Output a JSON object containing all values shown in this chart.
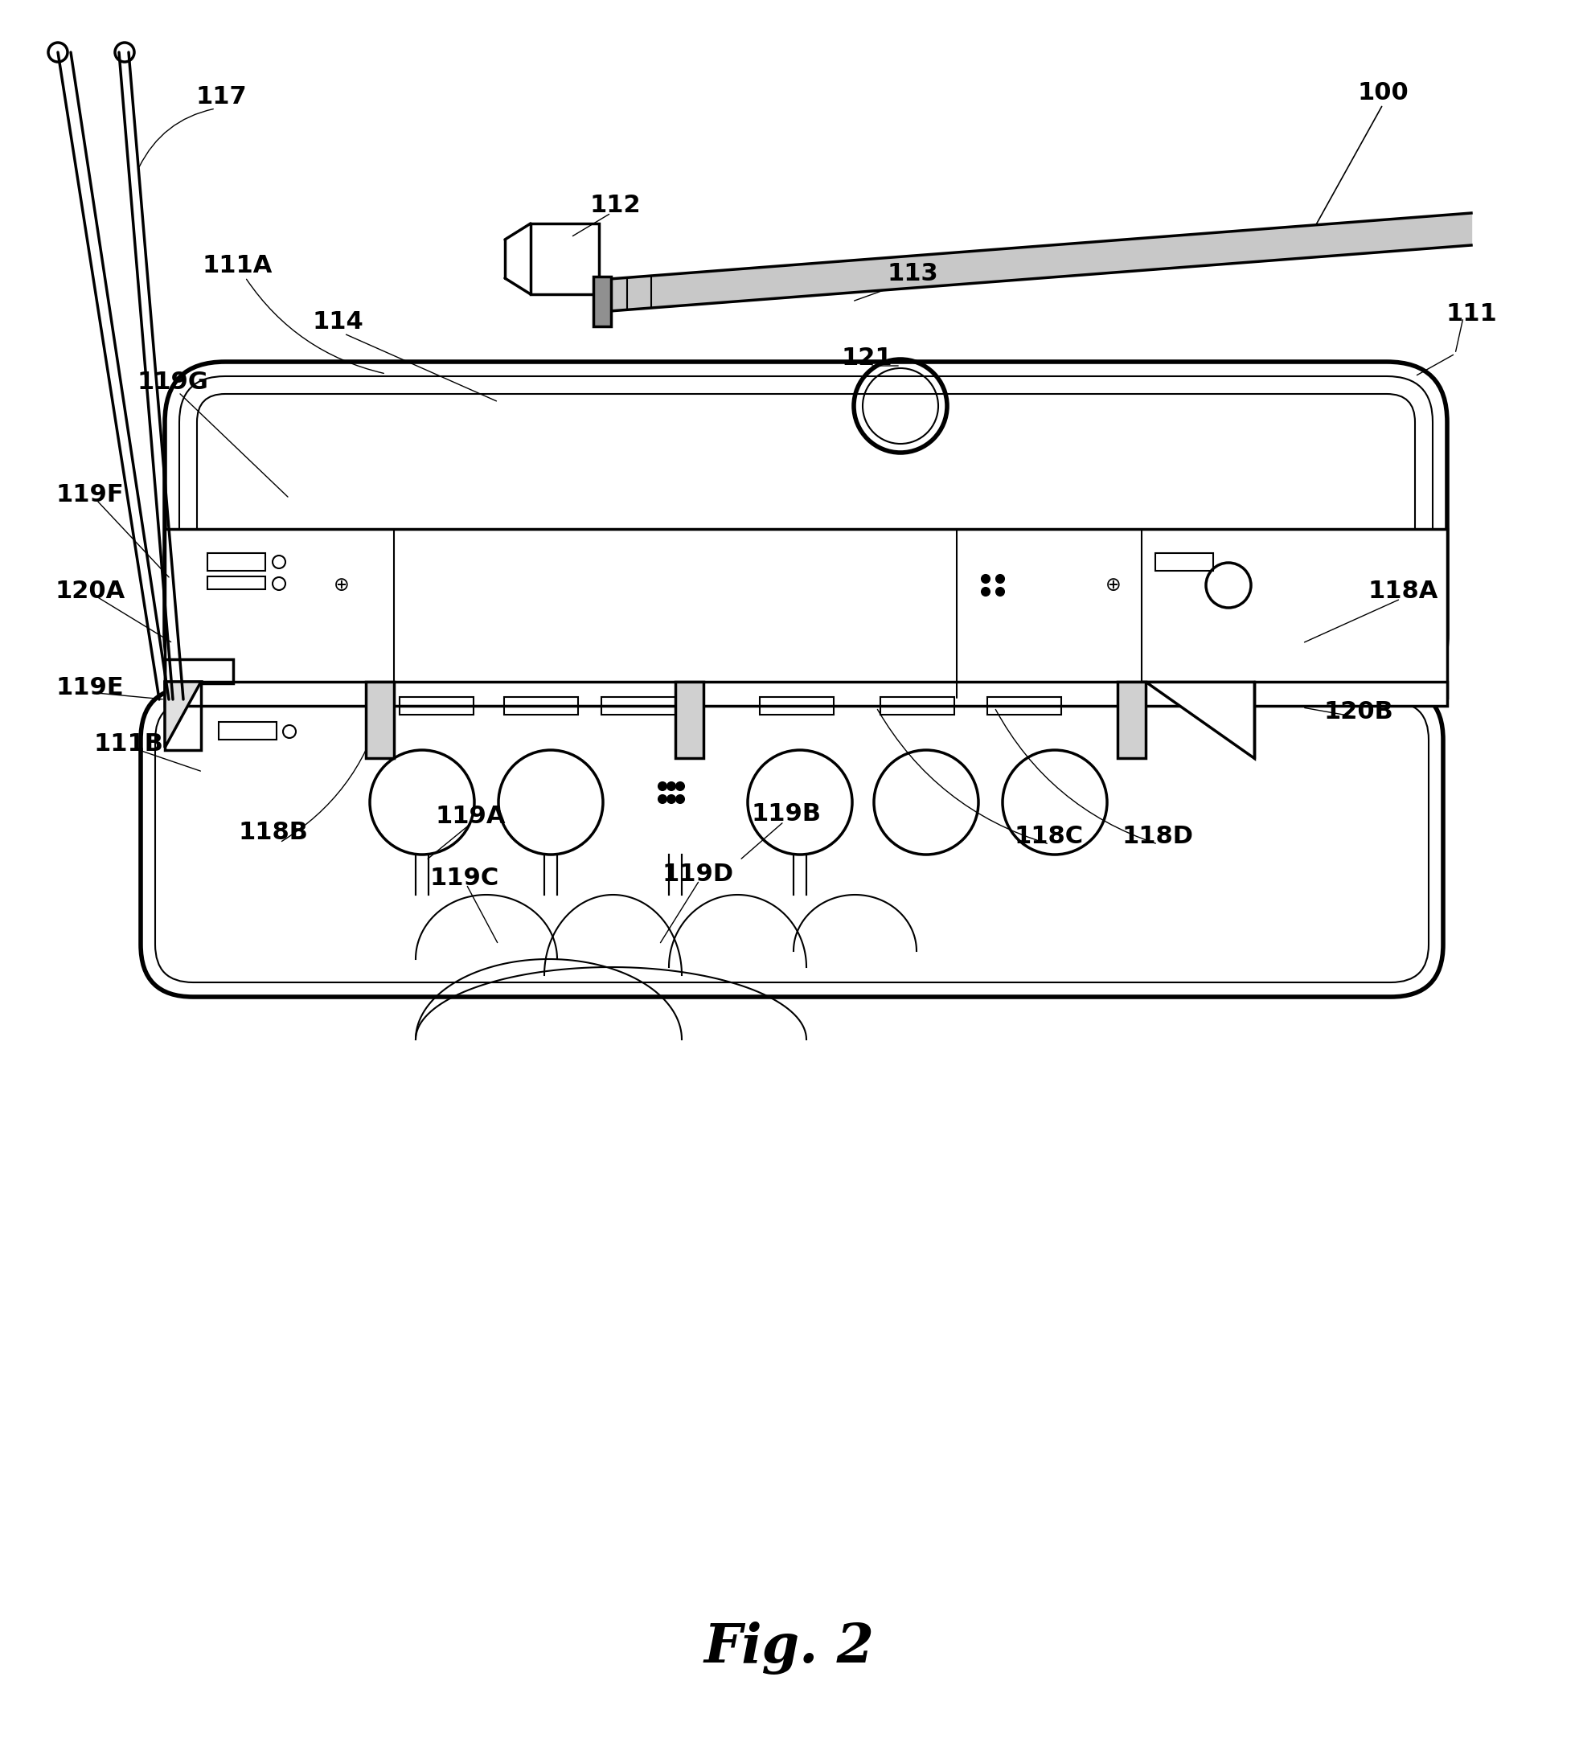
{
  "fig_label": "Fig. 2",
  "background_color": "#ffffff",
  "line_color": "#000000",
  "fig2_fontsize": 48,
  "label_fontsize": 22,
  "labels": [
    [
      "100",
      1720,
      115
    ],
    [
      "111",
      1830,
      390
    ],
    [
      "111A",
      295,
      330
    ],
    [
      "111B",
      160,
      925
    ],
    [
      "112",
      765,
      255
    ],
    [
      "113",
      1135,
      340
    ],
    [
      "114",
      420,
      400
    ],
    [
      "117",
      275,
      120
    ],
    [
      "118A",
      1745,
      735
    ],
    [
      "118B",
      340,
      1035
    ],
    [
      "118C",
      1305,
      1040
    ],
    [
      "118D",
      1440,
      1040
    ],
    [
      "119A",
      585,
      1015
    ],
    [
      "119B",
      978,
      1012
    ],
    [
      "119C",
      578,
      1092
    ],
    [
      "119D",
      868,
      1087
    ],
    [
      "119E",
      112,
      855
    ],
    [
      "119F",
      112,
      615
    ],
    [
      "119G",
      215,
      475
    ],
    [
      "120A",
      112,
      735
    ],
    [
      "120B",
      1690,
      885
    ],
    [
      "121",
      1078,
      445
    ]
  ]
}
